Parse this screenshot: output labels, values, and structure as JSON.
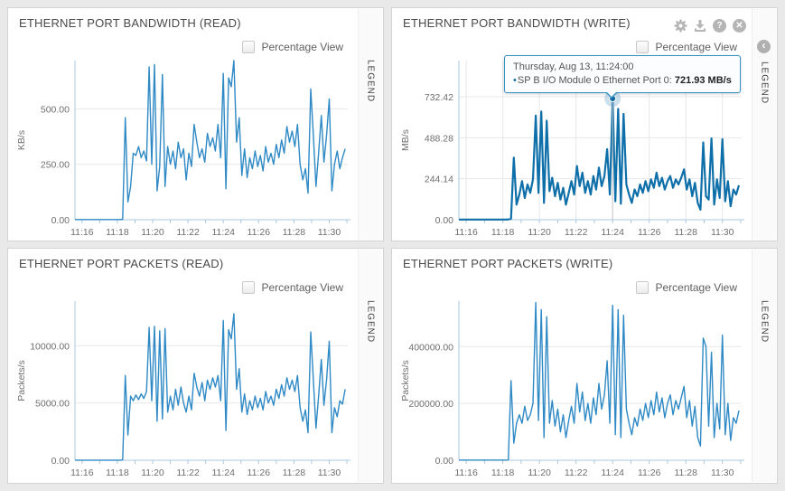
{
  "colors": {
    "line": "#2e89c5",
    "line_active": "#0e6fa9",
    "axis": "#a9c7e1",
    "grid": "#e7e7e7",
    "tick_text": "#6e6e6e",
    "crosshair": "#c6c6c6",
    "marker_fill": "#11699e",
    "marker_halo": "rgba(82,150,197,0.3)",
    "tooltip_border": "#3590c4",
    "icon_gray": "#b5b5b5"
  },
  "icons": {
    "help_glyph": "?",
    "close_glyph": "✕",
    "chevron_glyph": "‹"
  },
  "panels": [
    {
      "title": "ETHERNET PORT BANDWIDTH (READ)",
      "percentage_label": "Percentage View",
      "legend_label": "LEGEND"
    },
    {
      "title": "ETHERNET PORT BANDWIDTH (WRITE)",
      "percentage_label": "Percentage View",
      "legend_label": "LEGEND",
      "tooltip": {
        "line1": "Thursday, Aug 13, 11:24:00",
        "bullet": "•",
        "label": "SP B I/O Module 0 Ethernet Port 0:",
        "value": "721.93 MB/s"
      }
    },
    {
      "title": "ETHERNET PORT PACKETS (READ)",
      "percentage_label": "Percentage View",
      "legend_label": "LEGEND"
    },
    {
      "title": "ETHERNET PORT PACKETS (WRITE)",
      "percentage_label": "Percentage View",
      "legend_label": "LEGEND"
    }
  ],
  "chart_data": [
    {
      "type": "line",
      "title": "ETHERNET PORT BANDWIDTH (READ)",
      "ylabel": "KB/s",
      "ylim": [
        0,
        718
      ],
      "yticks": [
        {
          "v": 0,
          "label": "0.00"
        },
        {
          "v": 250,
          "label": "250.00"
        },
        {
          "v": 500,
          "label": "500.00"
        }
      ],
      "xlim": [
        15.6,
        31.05
      ],
      "xticks": [
        {
          "v": 16,
          "label": "11:16"
        },
        {
          "v": 18,
          "label": "11:18"
        },
        {
          "v": 20,
          "label": "11:20"
        },
        {
          "v": 22,
          "label": "11:22"
        },
        {
          "v": 24,
          "label": "11:24"
        },
        {
          "v": 26,
          "label": "11:26"
        },
        {
          "v": 28,
          "label": "11:28"
        },
        {
          "v": 30,
          "label": "11:30"
        }
      ],
      "grid_vertical": false,
      "series": [
        {
          "name": "SP B I/O Module 0 Ethernet Port 0",
          "unit": "KB/s",
          "t0": 15.6,
          "dt": 0.15,
          "width": 1.4,
          "values": [
            1,
            1,
            1,
            1,
            1,
            1,
            1,
            1,
            1,
            1,
            1,
            1,
            1,
            1,
            1,
            1,
            1,
            1,
            2,
            460,
            80,
            150,
            300,
            290,
            330,
            280,
            310,
            265,
            690,
            250,
            700,
            130,
            240,
            655,
            150,
            330,
            250,
            310,
            230,
            350,
            280,
            320,
            180,
            300,
            240,
            430,
            350,
            280,
            320,
            260,
            390,
            330,
            370,
            310,
            430,
            280,
            660,
            140,
            640,
            600,
            718,
            350,
            460,
            200,
            320,
            190,
            280,
            230,
            310,
            240,
            290,
            220,
            330,
            260,
            300,
            250,
            340,
            280,
            360,
            300,
            420,
            350,
            400,
            330,
            430,
            250,
            180,
            230,
            120,
            590,
            380,
            150,
            300,
            470,
            260,
            380,
            545,
            130,
            250,
            310,
            230,
            280,
            320
          ]
        }
      ]
    },
    {
      "type": "line",
      "title": "ETHERNET PORT BANDWIDTH (WRITE)",
      "ylabel": "MB/s",
      "ylim": [
        0,
        948
      ],
      "yticks": [
        {
          "v": 0,
          "label": "0.00"
        },
        {
          "v": 244.14,
          "label": "244.14"
        },
        {
          "v": 488.28,
          "label": "488.28"
        },
        {
          "v": 732.42,
          "label": "732.42"
        }
      ],
      "xlim": [
        15.6,
        31.05
      ],
      "xticks": [
        {
          "v": 16,
          "label": "11:16"
        },
        {
          "v": 18,
          "label": "11:18"
        },
        {
          "v": 20,
          "label": "11:20"
        },
        {
          "v": 22,
          "label": "11:22"
        },
        {
          "v": 24,
          "label": "11:24"
        },
        {
          "v": 26,
          "label": "11:26"
        },
        {
          "v": 28,
          "label": "11:28"
        },
        {
          "v": 30,
          "label": "11:30"
        }
      ],
      "grid_vertical": true,
      "marker": {
        "t": 24.0,
        "v": 721.93
      },
      "series": [
        {
          "name": "SP B I/O Module 0 Ethernet Port 0",
          "unit": "MB/s",
          "t0": 15.6,
          "dt": 0.15,
          "width": 2.2,
          "active": true,
          "values": [
            1,
            1,
            1,
            1,
            1,
            1,
            1,
            1,
            1,
            1,
            1,
            1,
            1,
            1,
            1,
            1,
            1,
            1,
            2,
            6,
            370,
            90,
            150,
            230,
            130,
            210,
            160,
            240,
            620,
            160,
            645,
            100,
            590,
            170,
            250,
            140,
            220,
            120,
            190,
            90,
            160,
            230,
            150,
            320,
            200,
            280,
            160,
            230,
            150,
            260,
            180,
            310,
            200,
            260,
            420,
            150,
            721.93,
            110,
            660,
            95,
            630,
            210,
            150,
            100,
            180,
            140,
            210,
            160,
            230,
            170,
            240,
            190,
            280,
            200,
            250,
            180,
            230,
            260,
            190,
            240,
            210,
            250,
            300,
            180,
            240,
            140,
            220,
            100,
            60,
            460,
            140,
            120,
            485,
            90,
            240,
            130,
            480,
            110,
            230,
            80,
            180,
            150,
            205
          ]
        }
      ]
    },
    {
      "type": "line",
      "title": "ETHERNET PORT PACKETS (READ)",
      "ylabel": "Packets/s",
      "ylim": [
        0,
        13900
      ],
      "yticks": [
        {
          "v": 0,
          "label": "0.00"
        },
        {
          "v": 5000,
          "label": "5000.00"
        },
        {
          "v": 10000,
          "label": "10000.00"
        }
      ],
      "xlim": [
        15.6,
        31.05
      ],
      "xticks": [
        {
          "v": 16,
          "label": "11:16"
        },
        {
          "v": 18,
          "label": "11:18"
        },
        {
          "v": 20,
          "label": "11:20"
        },
        {
          "v": 22,
          "label": "11:22"
        },
        {
          "v": 24,
          "label": "11:24"
        },
        {
          "v": 26,
          "label": "11:26"
        },
        {
          "v": 28,
          "label": "11:28"
        },
        {
          "v": 30,
          "label": "11:30"
        }
      ],
      "grid_vertical": false,
      "series": [
        {
          "name": "SP B I/O Module 0 Ethernet Port 0",
          "unit": "Packets/s",
          "t0": 15.6,
          "dt": 0.15,
          "width": 1.4,
          "values": [
            5,
            5,
            5,
            5,
            5,
            5,
            5,
            5,
            5,
            5,
            5,
            5,
            5,
            5,
            5,
            5,
            5,
            5,
            30,
            7400,
            2200,
            5600,
            5200,
            5700,
            5300,
            5800,
            5400,
            6000,
            11600,
            5200,
            11700,
            3400,
            11300,
            3600,
            11500,
            4200,
            5600,
            4400,
            6200,
            4800,
            6400,
            5000,
            4200,
            5600,
            4400,
            7600,
            6400,
            5600,
            6800,
            5200,
            7000,
            6200,
            7200,
            6400,
            7400,
            5200,
            12200,
            2600,
            11400,
            10600,
            12800,
            6200,
            8000,
            4200,
            5800,
            4000,
            5200,
            4400,
            5600,
            4600,
            5400,
            4400,
            6000,
            5000,
            5600,
            4800,
            6200,
            5400,
            6600,
            5600,
            7200,
            6200,
            7000,
            6000,
            7400,
            4600,
            3400,
            4400,
            2400,
            11200,
            7000,
            2800,
            5600,
            8800,
            4800,
            7000,
            10400,
            2400,
            4600,
            3800,
            5200,
            4900,
            6200
          ]
        }
      ]
    },
    {
      "type": "line",
      "title": "ETHERNET PORT PACKETS (WRITE)",
      "ylabel": "Packets/s",
      "ylim": [
        0,
        560000
      ],
      "yticks": [
        {
          "v": 0,
          "label": "0.00"
        },
        {
          "v": 200000,
          "label": "200000.00"
        },
        {
          "v": 400000,
          "label": "400000.00"
        }
      ],
      "xlim": [
        15.6,
        31.05
      ],
      "xticks": [
        {
          "v": 16,
          "label": "11:16"
        },
        {
          "v": 18,
          "label": "11:18"
        },
        {
          "v": 20,
          "label": "11:20"
        },
        {
          "v": 22,
          "label": "11:22"
        },
        {
          "v": 24,
          "label": "11:24"
        },
        {
          "v": 26,
          "label": "11:26"
        },
        {
          "v": 28,
          "label": "11:28"
        },
        {
          "v": 30,
          "label": "11:30"
        }
      ],
      "grid_vertical": false,
      "series": [
        {
          "name": "SP B I/O Module 0 Ethernet Port 0",
          "unit": "Packets/s",
          "t0": 15.6,
          "dt": 0.15,
          "width": 1.4,
          "values": [
            500,
            500,
            500,
            500,
            500,
            500,
            500,
            500,
            500,
            500,
            500,
            500,
            500,
            500,
            500,
            500,
            500,
            500,
            1000,
            280000,
            60000,
            130000,
            160000,
            130000,
            190000,
            140000,
            160000,
            200000,
            555000,
            140000,
            530000,
            80000,
            505000,
            130000,
            210000,
            120000,
            180000,
            100000,
            160000,
            80000,
            140000,
            190000,
            130000,
            270000,
            170000,
            240000,
            140000,
            200000,
            130000,
            220000,
            160000,
            270000,
            180000,
            230000,
            350000,
            130000,
            545000,
            90000,
            530000,
            80000,
            510000,
            180000,
            130000,
            90000,
            150000,
            120000,
            180000,
            140000,
            200000,
            150000,
            210000,
            160000,
            240000,
            170000,
            220000,
            150000,
            200000,
            230000,
            160000,
            210000,
            180000,
            220000,
            260000,
            150000,
            210000,
            120000,
            190000,
            80000,
            50000,
            430000,
            400000,
            120000,
            380000,
            80000,
            200000,
            110000,
            440000,
            90000,
            200000,
            70000,
            150000,
            130000,
            175000
          ]
        }
      ]
    }
  ]
}
